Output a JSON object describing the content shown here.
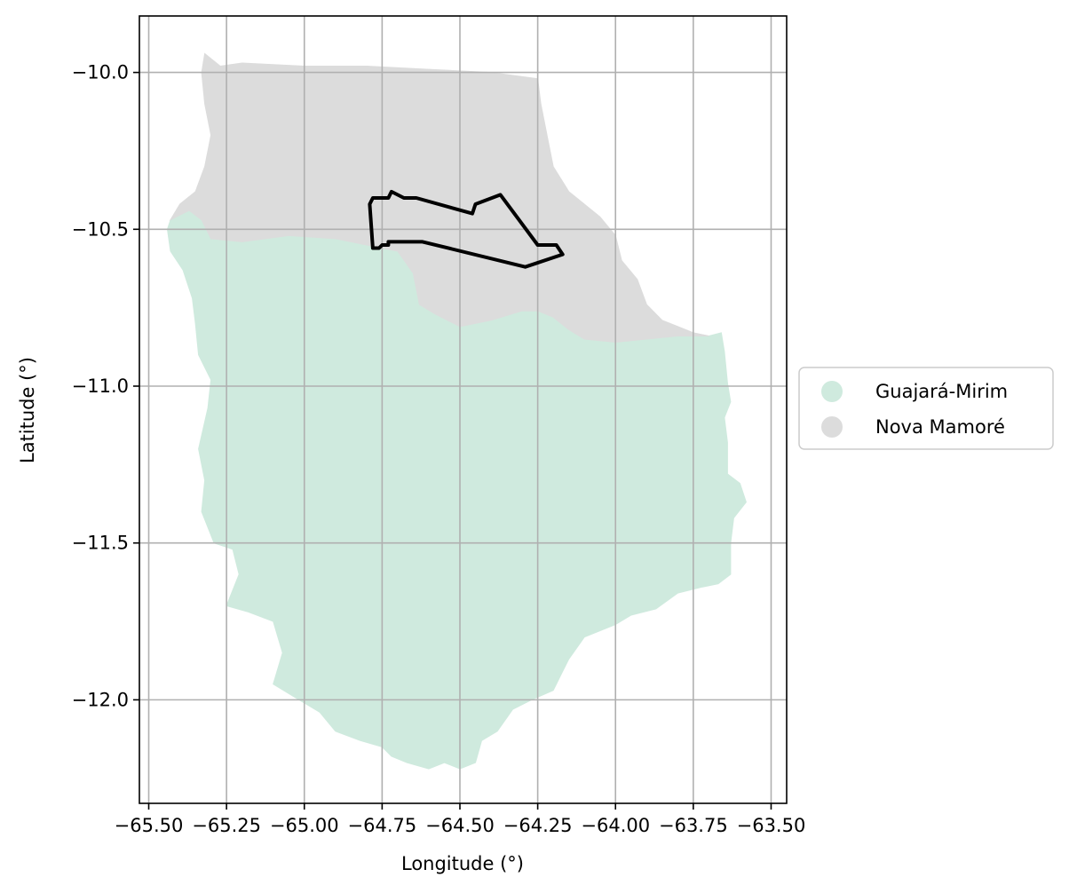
{
  "map": {
    "xlabel": "Longitude (°)",
    "ylabel": "Latitude (°)",
    "xlim": [
      -65.53,
      -63.45
    ],
    "ylim": [
      -12.33,
      -9.82
    ],
    "x_ticks": [
      {
        "value": -65.5,
        "label": "−65.50"
      },
      {
        "value": -65.25,
        "label": "−65.25"
      },
      {
        "value": -65.0,
        "label": "−65.00"
      },
      {
        "value": -64.75,
        "label": "−64.75"
      },
      {
        "value": -64.5,
        "label": "−64.50"
      },
      {
        "value": -64.25,
        "label": "−64.25"
      },
      {
        "value": -64.0,
        "label": "−64.00"
      },
      {
        "value": -63.75,
        "label": "−63.75"
      },
      {
        "value": -63.5,
        "label": "−63.50"
      }
    ],
    "y_ticks": [
      {
        "value": -10.0,
        "label": "−10.0"
      },
      {
        "value": -10.5,
        "label": "−10.5"
      },
      {
        "value": -11.0,
        "label": "−11.0"
      },
      {
        "value": -11.5,
        "label": "−11.5"
      },
      {
        "value": -12.0,
        "label": "−12.0"
      }
    ],
    "grid": true,
    "legend": {
      "placement": "right",
      "items": [
        {
          "label": "Guajará-Mirim",
          "color": "#cfeade"
        },
        {
          "label": "Nova Mamoré",
          "color": "#dcdcdc"
        }
      ]
    },
    "regions": [
      {
        "name": "Guajará-Mirim",
        "color": "#cfeade",
        "polygon": [
          [
            -65.43,
            -10.47
          ],
          [
            -65.37,
            -10.44
          ],
          [
            -65.33,
            -10.47
          ],
          [
            -65.3,
            -10.53
          ],
          [
            -65.2,
            -10.54
          ],
          [
            -65.05,
            -10.52
          ],
          [
            -64.9,
            -10.53
          ],
          [
            -64.8,
            -10.55
          ],
          [
            -64.7,
            -10.57
          ],
          [
            -64.65,
            -10.64
          ],
          [
            -64.63,
            -10.74
          ],
          [
            -64.58,
            -10.77
          ],
          [
            -64.5,
            -10.81
          ],
          [
            -64.4,
            -10.79
          ],
          [
            -64.3,
            -10.76
          ],
          [
            -64.25,
            -10.76
          ],
          [
            -64.2,
            -10.78
          ],
          [
            -64.15,
            -10.82
          ],
          [
            -64.1,
            -10.85
          ],
          [
            -64.0,
            -10.86
          ],
          [
            -63.9,
            -10.85
          ],
          [
            -63.8,
            -10.84
          ],
          [
            -63.7,
            -10.84
          ],
          [
            -63.66,
            -10.83
          ],
          [
            -63.65,
            -10.89
          ],
          [
            -63.64,
            -10.99
          ],
          [
            -63.63,
            -11.05
          ],
          [
            -63.65,
            -11.1
          ],
          [
            -63.64,
            -11.18
          ],
          [
            -63.64,
            -11.28
          ],
          [
            -63.6,
            -11.31
          ],
          [
            -63.58,
            -11.37
          ],
          [
            -63.62,
            -11.42
          ],
          [
            -63.63,
            -11.5
          ],
          [
            -63.63,
            -11.6
          ],
          [
            -63.67,
            -11.63
          ],
          [
            -63.72,
            -11.64
          ],
          [
            -63.8,
            -11.66
          ],
          [
            -63.87,
            -11.71
          ],
          [
            -63.95,
            -11.73
          ],
          [
            -64.0,
            -11.76
          ],
          [
            -64.1,
            -11.8
          ],
          [
            -64.15,
            -11.87
          ],
          [
            -64.18,
            -11.93
          ],
          [
            -64.2,
            -11.97
          ],
          [
            -64.27,
            -12.0
          ],
          [
            -64.33,
            -12.03
          ],
          [
            -64.38,
            -12.1
          ],
          [
            -64.43,
            -12.13
          ],
          [
            -64.45,
            -12.2
          ],
          [
            -64.5,
            -12.22
          ],
          [
            -64.55,
            -12.2
          ],
          [
            -64.6,
            -12.22
          ],
          [
            -64.67,
            -12.2
          ],
          [
            -64.72,
            -12.18
          ],
          [
            -64.75,
            -12.15
          ],
          [
            -64.82,
            -12.13
          ],
          [
            -64.9,
            -12.1
          ],
          [
            -64.95,
            -12.04
          ],
          [
            -65.0,
            -12.01
          ],
          [
            -65.05,
            -11.98
          ],
          [
            -65.1,
            -11.95
          ],
          [
            -65.07,
            -11.85
          ],
          [
            -65.1,
            -11.75
          ],
          [
            -65.18,
            -11.72
          ],
          [
            -65.25,
            -11.7
          ],
          [
            -65.21,
            -11.6
          ],
          [
            -65.23,
            -11.52
          ],
          [
            -65.29,
            -11.5
          ],
          [
            -65.33,
            -11.4
          ],
          [
            -65.32,
            -11.3
          ],
          [
            -65.34,
            -11.2
          ],
          [
            -65.31,
            -11.07
          ],
          [
            -65.3,
            -10.98
          ],
          [
            -65.34,
            -10.9
          ],
          [
            -65.35,
            -10.8
          ],
          [
            -65.36,
            -10.72
          ],
          [
            -65.39,
            -10.63
          ],
          [
            -65.43,
            -10.57
          ],
          [
            -65.44,
            -10.5
          ]
        ]
      },
      {
        "name": "Nova Mamoré",
        "color": "#dcdcdc",
        "polygon": [
          [
            -65.32,
            -9.94
          ],
          [
            -65.27,
            -9.98
          ],
          [
            -65.2,
            -9.97
          ],
          [
            -65.0,
            -9.98
          ],
          [
            -64.8,
            -9.98
          ],
          [
            -64.6,
            -9.99
          ],
          [
            -64.4,
            -10.0
          ],
          [
            -64.25,
            -10.02
          ],
          [
            -64.24,
            -10.1
          ],
          [
            -64.22,
            -10.2
          ],
          [
            -64.2,
            -10.3
          ],
          [
            -64.15,
            -10.38
          ],
          [
            -64.05,
            -10.46
          ],
          [
            -64.0,
            -10.52
          ],
          [
            -63.98,
            -10.6
          ],
          [
            -63.93,
            -10.66
          ],
          [
            -63.9,
            -10.74
          ],
          [
            -63.85,
            -10.79
          ],
          [
            -63.75,
            -10.83
          ],
          [
            -63.7,
            -10.84
          ],
          [
            -63.8,
            -10.84
          ],
          [
            -63.9,
            -10.85
          ],
          [
            -64.0,
            -10.86
          ],
          [
            -64.1,
            -10.85
          ],
          [
            -64.15,
            -10.82
          ],
          [
            -64.2,
            -10.78
          ],
          [
            -64.25,
            -10.76
          ],
          [
            -64.3,
            -10.76
          ],
          [
            -64.4,
            -10.79
          ],
          [
            -64.5,
            -10.81
          ],
          [
            -64.58,
            -10.77
          ],
          [
            -64.63,
            -10.74
          ],
          [
            -64.65,
            -10.64
          ],
          [
            -64.7,
            -10.57
          ],
          [
            -64.8,
            -10.55
          ],
          [
            -64.9,
            -10.53
          ],
          [
            -65.05,
            -10.52
          ],
          [
            -65.2,
            -10.54
          ],
          [
            -65.3,
            -10.53
          ],
          [
            -65.33,
            -10.47
          ],
          [
            -65.37,
            -10.44
          ],
          [
            -65.43,
            -10.47
          ],
          [
            -65.4,
            -10.42
          ],
          [
            -65.35,
            -10.38
          ],
          [
            -65.32,
            -10.3
          ],
          [
            -65.3,
            -10.2
          ],
          [
            -65.32,
            -10.1
          ],
          [
            -65.33,
            -10.0
          ]
        ]
      }
    ],
    "outline": {
      "color": "#000000",
      "polygon": [
        [
          -64.79,
          -10.42
        ],
        [
          -64.78,
          -10.4
        ],
        [
          -64.73,
          -10.4
        ],
        [
          -64.72,
          -10.38
        ],
        [
          -64.68,
          -10.4
        ],
        [
          -64.64,
          -10.4
        ],
        [
          -64.46,
          -10.45
        ],
        [
          -64.45,
          -10.42
        ],
        [
          -64.37,
          -10.39
        ],
        [
          -64.25,
          -10.55
        ],
        [
          -64.19,
          -10.55
        ],
        [
          -64.17,
          -10.58
        ],
        [
          -64.29,
          -10.62
        ],
        [
          -64.62,
          -10.54
        ],
        [
          -64.73,
          -10.54
        ],
        [
          -64.73,
          -10.55
        ],
        [
          -64.75,
          -10.55
        ],
        [
          -64.76,
          -10.56
        ],
        [
          -64.78,
          -10.56
        ]
      ]
    }
  }
}
